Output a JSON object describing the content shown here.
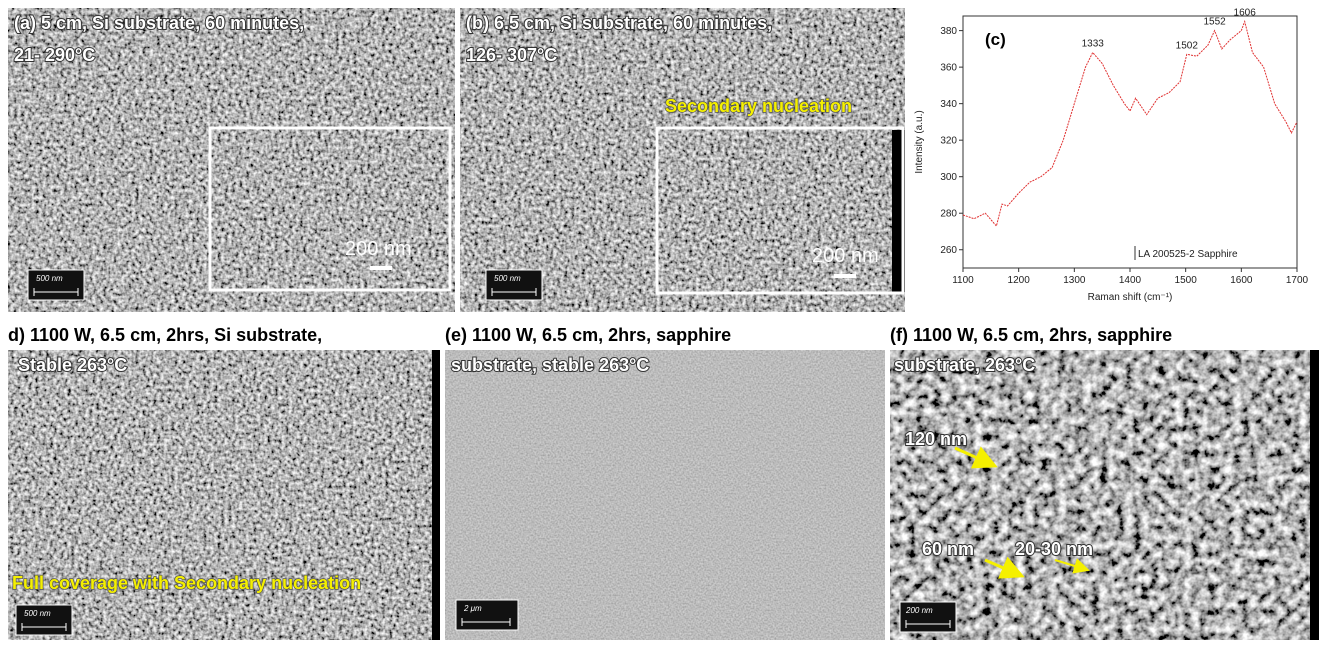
{
  "panels": [
    {
      "title_lines": [
        "(a) 5 cm, Si substrate, 60 minutes,",
        "21- 290°C"
      ],
      "inset_scale": "200 nm",
      "scale_bar": "500 nm"
    },
    {
      "title_lines": [
        "(b) 6.5 cm, Si substrate, 60 minutes,",
        "126- 307°C"
      ],
      "annotation": "Secondary nucleation",
      "inset_scale": "200 nm",
      "scale_bar": "500 nm"
    },
    {
      "title_lines": [
        "d) 1100 W, 6.5 cm, 2hrs, Si substrate,",
        "Stable 263°C"
      ],
      "annotation": "Full coverage with Secondary nucleation",
      "scale_bar": "500 nm"
    },
    {
      "title_lines": [
        "(e) 1100 W, 6.5 cm, 2hrs, sapphire",
        "substrate, stable 263°C"
      ],
      "scale_bar": "2 μm"
    },
    {
      "title_lines": [
        "(f) 1100 W, 6.5 cm, 2hrs, sapphire",
        "substrate, 263°C"
      ],
      "annotations": [
        "120 nm",
        "60 nm",
        "20-30 nm"
      ],
      "scale_bar": "200 nm"
    }
  ],
  "chart_data": {
    "type": "line",
    "panel_label": "(c)",
    "x_label": "Raman shift (cm⁻¹)",
    "y_label": "Intensity (a.u.)",
    "x": [
      1100,
      1120,
      1140,
      1160,
      1170,
      1180,
      1200,
      1220,
      1240,
      1260,
      1280,
      1300,
      1320,
      1333,
      1350,
      1370,
      1390,
      1400,
      1410,
      1430,
      1450,
      1470,
      1490,
      1502,
      1520,
      1540,
      1552,
      1565,
      1580,
      1600,
      1606,
      1620,
      1640,
      1660,
      1680,
      1690,
      1700
    ],
    "series": [
      {
        "name": "LA 200525-2 Sapphire",
        "color": "#e03030",
        "values": [
          279,
          277,
          280,
          273,
          285,
          284,
          291,
          297,
          300,
          305,
          320,
          340,
          360,
          368,
          362,
          350,
          340,
          336,
          343,
          334,
          343,
          346,
          352,
          367,
          366,
          372,
          380,
          370,
          375,
          380,
          385,
          368,
          360,
          340,
          330,
          324,
          330
        ]
      }
    ],
    "peak_labels": [
      1333,
      1502,
      1552,
      1606
    ],
    "xlim": [
      1100,
      1700
    ],
    "xticks": [
      1100,
      1200,
      1300,
      1400,
      1500,
      1600,
      1700
    ],
    "ylim": [
      250,
      388
    ],
    "yticks": [
      260,
      280,
      300,
      320,
      340,
      360,
      380
    ]
  }
}
